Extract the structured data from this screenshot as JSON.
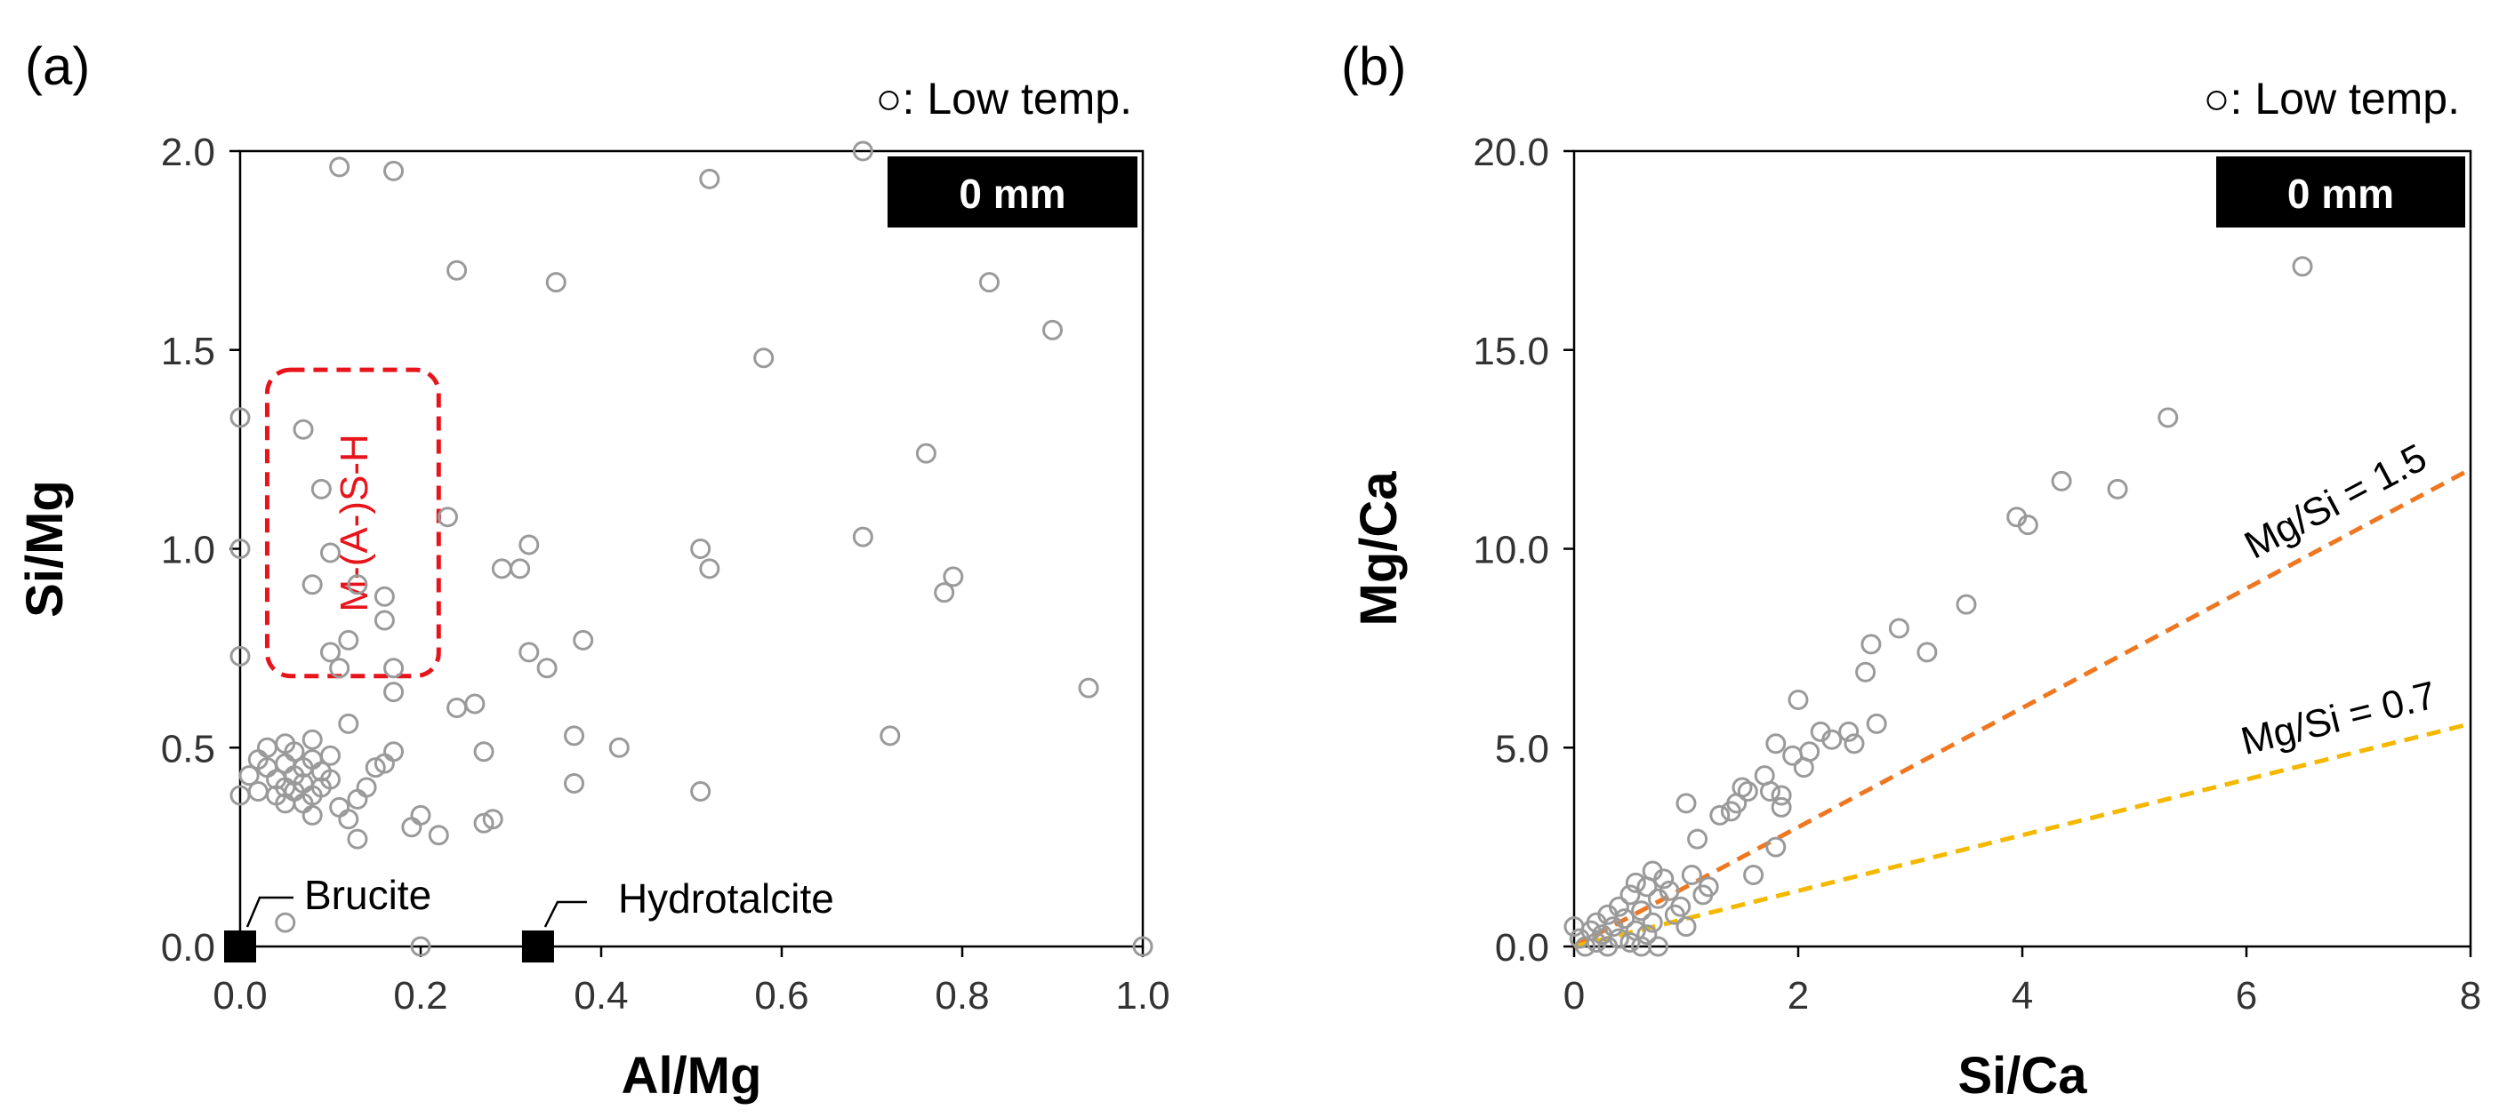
{
  "chart_data": [
    {
      "panel": "(a)",
      "type": "scatter",
      "legend": "○: Low temp.",
      "badge": "0 mm",
      "xlabel": "Al/Mg",
      "ylabel": "Si/Mg",
      "xlim": [
        0,
        1
      ],
      "ylim": [
        0,
        2
      ],
      "xticks": [
        "0.0",
        "0.2",
        "0.4",
        "0.6",
        "0.8",
        "1.0"
      ],
      "yticks": [
        "0.0",
        "0.5",
        "1.0",
        "1.5",
        "2.0"
      ],
      "series": [
        {
          "name": "Low temp.",
          "points": [
            [
              0.0,
              1.33
            ],
            [
              0.0,
              1.0
            ],
            [
              0.0,
              0.73
            ],
            [
              0.0,
              0.38
            ],
            [
              0.01,
              0.43
            ],
            [
              0.02,
              0.47
            ],
            [
              0.02,
              0.39
            ],
            [
              0.03,
              0.45
            ],
            [
              0.03,
              0.5
            ],
            [
              0.04,
              0.38
            ],
            [
              0.04,
              0.42
            ],
            [
              0.05,
              0.51
            ],
            [
              0.05,
              0.46
            ],
            [
              0.05,
              0.4
            ],
            [
              0.05,
              0.36
            ],
            [
              0.06,
              0.49
            ],
            [
              0.06,
              0.43
            ],
            [
              0.06,
              0.39
            ],
            [
              0.07,
              0.45
            ],
            [
              0.07,
              0.41
            ],
            [
              0.07,
              0.36
            ],
            [
              0.08,
              0.52
            ],
            [
              0.08,
              0.47
            ],
            [
              0.08,
              0.38
            ],
            [
              0.08,
              0.33
            ],
            [
              0.09,
              0.44
            ],
            [
              0.09,
              0.4
            ],
            [
              0.1,
              0.48
            ],
            [
              0.1,
              0.42
            ],
            [
              0.11,
              0.35
            ],
            [
              0.12,
              0.32
            ],
            [
              0.13,
              0.27
            ],
            [
              0.13,
              0.37
            ],
            [
              0.14,
              0.4
            ],
            [
              0.15,
              0.45
            ],
            [
              0.16,
              0.46
            ],
            [
              0.17,
              0.49
            ],
            [
              0.19,
              0.3
            ],
            [
              0.2,
              0.33
            ],
            [
              0.22,
              0.28
            ],
            [
              0.05,
              0.06
            ],
            [
              0.2,
              0.0
            ],
            [
              0.07,
              1.3
            ],
            [
              0.08,
              0.91
            ],
            [
              0.09,
              1.15
            ],
            [
              0.1,
              0.99
            ],
            [
              0.1,
              0.74
            ],
            [
              0.11,
              0.7
            ],
            [
              0.12,
              0.77
            ],
            [
              0.13,
              0.91
            ],
            [
              0.16,
              0.88
            ],
            [
              0.16,
              0.82
            ],
            [
              0.17,
              0.7
            ],
            [
              0.17,
              0.64
            ],
            [
              0.12,
              0.56
            ],
            [
              0.23,
              1.08
            ],
            [
              0.24,
              0.6
            ],
            [
              0.26,
              0.61
            ],
            [
              0.27,
              0.49
            ],
            [
              0.27,
              0.31
            ],
            [
              0.28,
              0.32
            ],
            [
              0.29,
              0.95
            ],
            [
              0.31,
              0.95
            ],
            [
              0.32,
              1.01
            ],
            [
              0.32,
              0.74
            ],
            [
              0.34,
              0.7
            ],
            [
              0.37,
              0.53
            ],
            [
              0.37,
              0.41
            ],
            [
              0.38,
              0.77
            ],
            [
              0.42,
              0.5
            ],
            [
              0.51,
              1.0
            ],
            [
              0.51,
              0.39
            ],
            [
              0.52,
              0.95
            ],
            [
              0.11,
              1.96
            ],
            [
              0.17,
              1.95
            ],
            [
              0.24,
              1.7
            ],
            [
              0.35,
              1.67
            ],
            [
              0.52,
              1.93
            ],
            [
              0.58,
              1.48
            ],
            [
              0.69,
              2.0
            ],
            [
              0.69,
              1.03
            ],
            [
              0.72,
              0.53
            ],
            [
              0.76,
              1.24
            ],
            [
              0.78,
              0.89
            ],
            [
              0.79,
              0.93
            ],
            [
              0.83,
              1.67
            ],
            [
              0.9,
              1.55
            ],
            [
              0.94,
              0.65
            ],
            [
              1.0,
              0.0
            ]
          ]
        }
      ],
      "reference_points": [
        {
          "label": "Brucite",
          "x": 0.0,
          "y": 0.0
        },
        {
          "label": "Hydrotalcite",
          "x": 0.33,
          "y": 0.0
        }
      ],
      "region": {
        "label": "M-(A-)S-H",
        "x_range": [
          0.03,
          0.22
        ],
        "y_range": [
          0.68,
          1.45
        ]
      }
    },
    {
      "panel": "(b)",
      "type": "scatter",
      "legend": "○: Low temp.",
      "badge": "0 mm",
      "xlabel": "Si/Ca",
      "ylabel": "Mg/Ca",
      "xlim": [
        0,
        8
      ],
      "ylim": [
        0,
        20
      ],
      "xticks": [
        "0",
        "2",
        "4",
        "6",
        "8"
      ],
      "yticks": [
        "0.0",
        "5.0",
        "10.0",
        "15.0",
        "20.0"
      ],
      "series": [
        {
          "name": "Low temp.",
          "points": [
            [
              0.0,
              0.5
            ],
            [
              0.05,
              0.2
            ],
            [
              0.1,
              0.0
            ],
            [
              0.15,
              0.4
            ],
            [
              0.2,
              0.1
            ],
            [
              0.2,
              0.6
            ],
            [
              0.25,
              0.3
            ],
            [
              0.3,
              0.8
            ],
            [
              0.3,
              0.0
            ],
            [
              0.35,
              0.5
            ],
            [
              0.4,
              0.2
            ],
            [
              0.4,
              1.0
            ],
            [
              0.45,
              0.7
            ],
            [
              0.5,
              0.1
            ],
            [
              0.5,
              1.3
            ],
            [
              0.55,
              0.4
            ],
            [
              0.55,
              1.6
            ],
            [
              0.6,
              0.9
            ],
            [
              0.6,
              0.0
            ],
            [
              0.65,
              1.5
            ],
            [
              0.65,
              0.3
            ],
            [
              0.7,
              1.9
            ],
            [
              0.7,
              0.6
            ],
            [
              0.75,
              1.2
            ],
            [
              0.75,
              0.0
            ],
            [
              0.8,
              1.7
            ],
            [
              0.85,
              1.4
            ],
            [
              0.9,
              0.8
            ],
            [
              0.95,
              1.0
            ],
            [
              1.0,
              0.5
            ],
            [
              1.05,
              1.8
            ],
            [
              1.1,
              2.7
            ],
            [
              1.15,
              1.3
            ],
            [
              1.2,
              1.5
            ],
            [
              1.0,
              3.6
            ],
            [
              1.3,
              3.3
            ],
            [
              1.4,
              3.4
            ],
            [
              1.45,
              3.6
            ],
            [
              1.5,
              4.0
            ],
            [
              1.55,
              3.9
            ],
            [
              1.6,
              1.8
            ],
            [
              1.7,
              4.3
            ],
            [
              1.75,
              3.9
            ],
            [
              1.8,
              2.5
            ],
            [
              1.85,
              3.5
            ],
            [
              1.85,
              3.8
            ],
            [
              1.8,
              5.1
            ],
            [
              1.95,
              4.8
            ],
            [
              2.0,
              6.2
            ],
            [
              2.05,
              4.5
            ],
            [
              2.1,
              4.9
            ],
            [
              2.2,
              5.4
            ],
            [
              2.3,
              5.2
            ],
            [
              2.45,
              5.4
            ],
            [
              2.5,
              5.1
            ],
            [
              2.6,
              6.9
            ],
            [
              2.65,
              7.6
            ],
            [
              2.7,
              5.6
            ],
            [
              2.9,
              8.0
            ],
            [
              3.15,
              7.4
            ],
            [
              3.5,
              8.6
            ],
            [
              3.95,
              10.8
            ],
            [
              4.05,
              10.6
            ],
            [
              4.35,
              11.7
            ],
            [
              4.85,
              11.5
            ],
            [
              5.3,
              13.3
            ],
            [
              6.5,
              17.1
            ]
          ]
        }
      ],
      "reference_lines": [
        {
          "label": "Mg/Si = 1.5",
          "slope": 1.5,
          "color": "#EE7722"
        },
        {
          "label": "Mg/Si = 0.7",
          "slope": 0.7,
          "color": "#F5B800"
        }
      ]
    }
  ]
}
